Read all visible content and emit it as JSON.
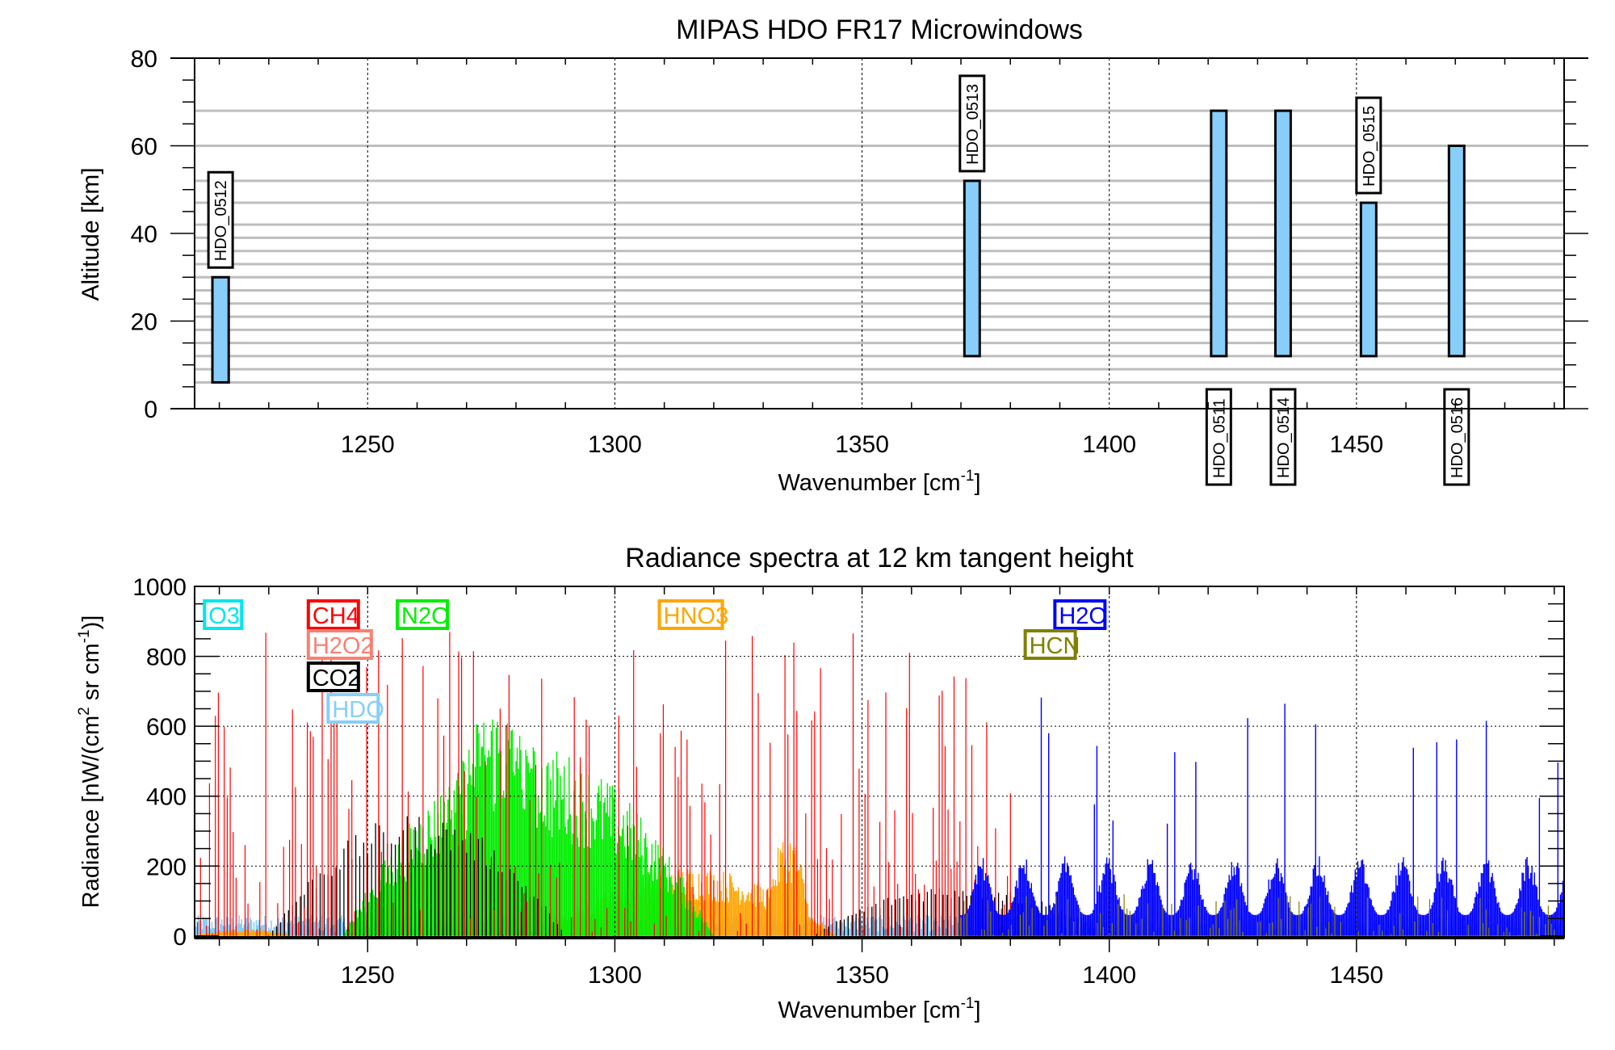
{
  "chart_data": [
    {
      "type": "bar",
      "title": "MIPAS HDO FR17 Microwindows",
      "xlabel": "Wavenumber [cm",
      "xlabel_sup": "-1",
      "xlabel_end": "]",
      "ylabel": "Altitude [km]",
      "xlim": [
        1215,
        1492
      ],
      "ylim": [
        0,
        80
      ],
      "xticks": [
        1250,
        1300,
        1350,
        1400,
        1450
      ],
      "xtick_labels": [
        "1250",
        "1300",
        "1350",
        "1400",
        "1450"
      ],
      "yticks": [
        0,
        20,
        40,
        60,
        80
      ],
      "ytick_labels": [
        "0",
        "20",
        "40",
        "60",
        "80"
      ],
      "grid": "vertical dotted at major x ticks",
      "tangent_heights_km": [
        6,
        9,
        12,
        15,
        18,
        21,
        24,
        27,
        30,
        33,
        36,
        39,
        42,
        47,
        52,
        60,
        68
      ],
      "bar_color": "#87cefa",
      "microwindows": [
        {
          "name": "HDO_0512",
          "wn_min": 1218.6,
          "wn_max": 1221.9,
          "alt_min": 6,
          "alt_max": 30,
          "label_pos": "above"
        },
        {
          "name": "HDO_0513",
          "wn_min": 1370.7,
          "wn_max": 1373.8,
          "alt_min": 12,
          "alt_max": 52,
          "label_pos": "above"
        },
        {
          "name": "HDO_0511",
          "wn_min": 1420.6,
          "wn_max": 1423.7,
          "alt_min": 12,
          "alt_max": 68,
          "label_pos": "below"
        },
        {
          "name": "HDO_0514",
          "wn_min": 1433.6,
          "wn_max": 1436.7,
          "alt_min": 12,
          "alt_max": 68,
          "label_pos": "below"
        },
        {
          "name": "HDO_0515",
          "wn_min": 1450.9,
          "wn_max": 1454.0,
          "alt_min": 12,
          "alt_max": 47,
          "label_pos": "above"
        },
        {
          "name": "HDO_0516",
          "wn_min": 1468.7,
          "wn_max": 1471.8,
          "alt_min": 12,
          "alt_max": 60,
          "label_pos": "below"
        }
      ]
    },
    {
      "type": "line",
      "title": "Radiance spectra at 12 km tangent height",
      "xlabel": "Wavenumber [cm",
      "xlabel_sup": "-1",
      "xlabel_end": "]",
      "ylabel": "Radiance [nW/(cm",
      "ylabel_sup1": "2",
      "ylabel_mid": " sr cm",
      "ylabel_sup2": "-1",
      "ylabel_end": ")]",
      "xlim": [
        1215,
        1492
      ],
      "ylim": [
        -5,
        1000
      ],
      "xticks": [
        1250,
        1300,
        1350,
        1400,
        1450
      ],
      "xtick_labels": [
        "1250",
        "1300",
        "1350",
        "1400",
        "1450"
      ],
      "yticks": [
        0,
        200,
        400,
        600,
        800,
        1000
      ],
      "ytick_labels": [
        "0",
        "200",
        "400",
        "600",
        "800",
        "1000"
      ],
      "grid": "dotted at major ticks",
      "legend": [
        {
          "name": "O3",
          "color": "#00e5ee",
          "row": 0,
          "x": 1217
        },
        {
          "name": "CH4",
          "color": "#ff0000",
          "row": 0,
          "x": 1238
        },
        {
          "name": "N2O",
          "color": "#00ee00",
          "row": 0,
          "x": 1256
        },
        {
          "name": "HNO3",
          "color": "#ffa500",
          "row": 0,
          "x": 1309
        },
        {
          "name": "H2O",
          "color": "#0000ff",
          "row": 0,
          "x": 1389
        },
        {
          "name": "H2O2",
          "color": "#fa8072",
          "row": 1,
          "x": 1238
        },
        {
          "name": "HCN",
          "color": "#808000",
          "row": 1,
          "x": 1383
        },
        {
          "name": "CO2",
          "color": "#000000",
          "row": 2,
          "x": 1238
        },
        {
          "name": "HDO",
          "color": "#87cefa",
          "row": 3,
          "x": 1242
        }
      ],
      "series": [
        {
          "name": "HDO",
          "color": "#87cefa",
          "range": [
            1215,
            1492
          ],
          "peak": 60,
          "style": "fill-low"
        },
        {
          "name": "HNO3",
          "color": "#ffa500",
          "bands": [
            [
              1285,
              1345,
              200
            ],
            [
              1330,
              1340,
              300
            ],
            [
              1215,
              1235,
              20
            ]
          ],
          "style": "band"
        },
        {
          "name": "N2O",
          "color": "#00ee00",
          "bands": [
            [
              1245,
              1320,
              550
            ],
            [
              1262,
              1290,
              680
            ]
          ],
          "style": "band"
        },
        {
          "name": "CO2",
          "color": "#000000",
          "bands": [
            [
              1230,
              1290,
              350
            ],
            [
              1340,
              1400,
              150
            ]
          ],
          "style": "comb"
        },
        {
          "name": "CH4",
          "color": "#ff0000",
          "range": [
            1215,
            1380
          ],
          "peak": 870,
          "style": "lines"
        },
        {
          "name": "H2O",
          "color": "#0000ff",
          "range": [
            1370,
            1492
          ],
          "peak": 700,
          "style": "clusters"
        },
        {
          "name": "HCN",
          "color": "#808000",
          "range": [
            1370,
            1492
          ],
          "peak": 120,
          "style": "lines"
        }
      ]
    }
  ]
}
